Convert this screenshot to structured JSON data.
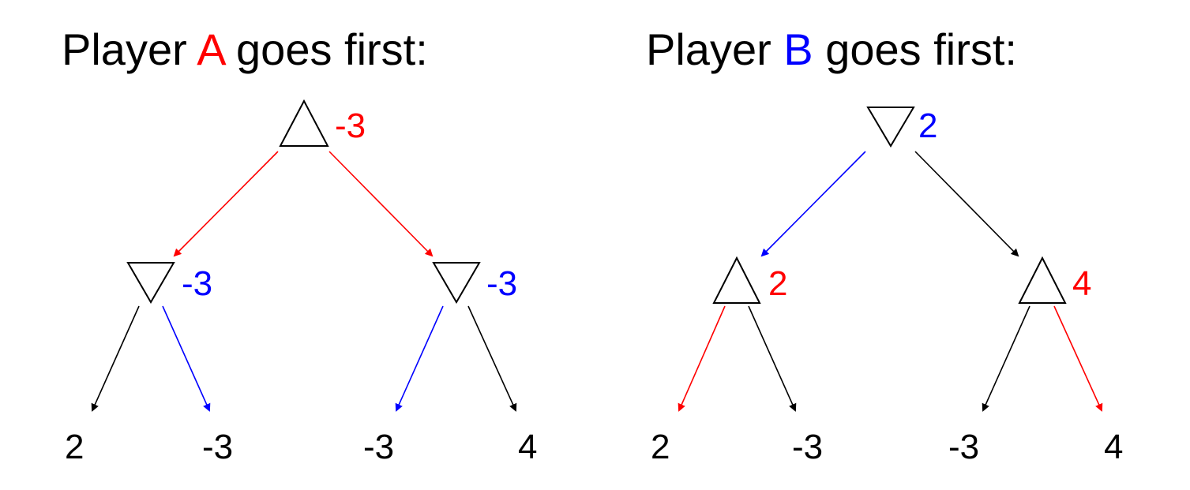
{
  "colors": {
    "player_a": "#ff0000",
    "player_b": "#0000ff",
    "neutral": "#000000"
  },
  "trees": [
    {
      "title": {
        "prefix": "Player ",
        "player": "A",
        "suffix": " goes first:"
      },
      "root": {
        "shape": "max-triangle-up",
        "value": "-3"
      },
      "children": [
        {
          "shape": "min-triangle-down",
          "value": "-3",
          "leaves": [
            "2",
            "-3"
          ]
        },
        {
          "shape": "min-triangle-down",
          "value": "-3",
          "leaves": [
            "-3",
            "4"
          ]
        }
      ]
    },
    {
      "title": {
        "prefix": "Player ",
        "player": "B",
        "suffix": " goes first:"
      },
      "root": {
        "shape": "min-triangle-down",
        "value": "2"
      },
      "children": [
        {
          "shape": "max-triangle-up",
          "value": "2",
          "leaves": [
            "2",
            "-3"
          ]
        },
        {
          "shape": "max-triangle-up",
          "value": "4",
          "leaves": [
            "-3",
            "4"
          ]
        }
      ]
    }
  ]
}
